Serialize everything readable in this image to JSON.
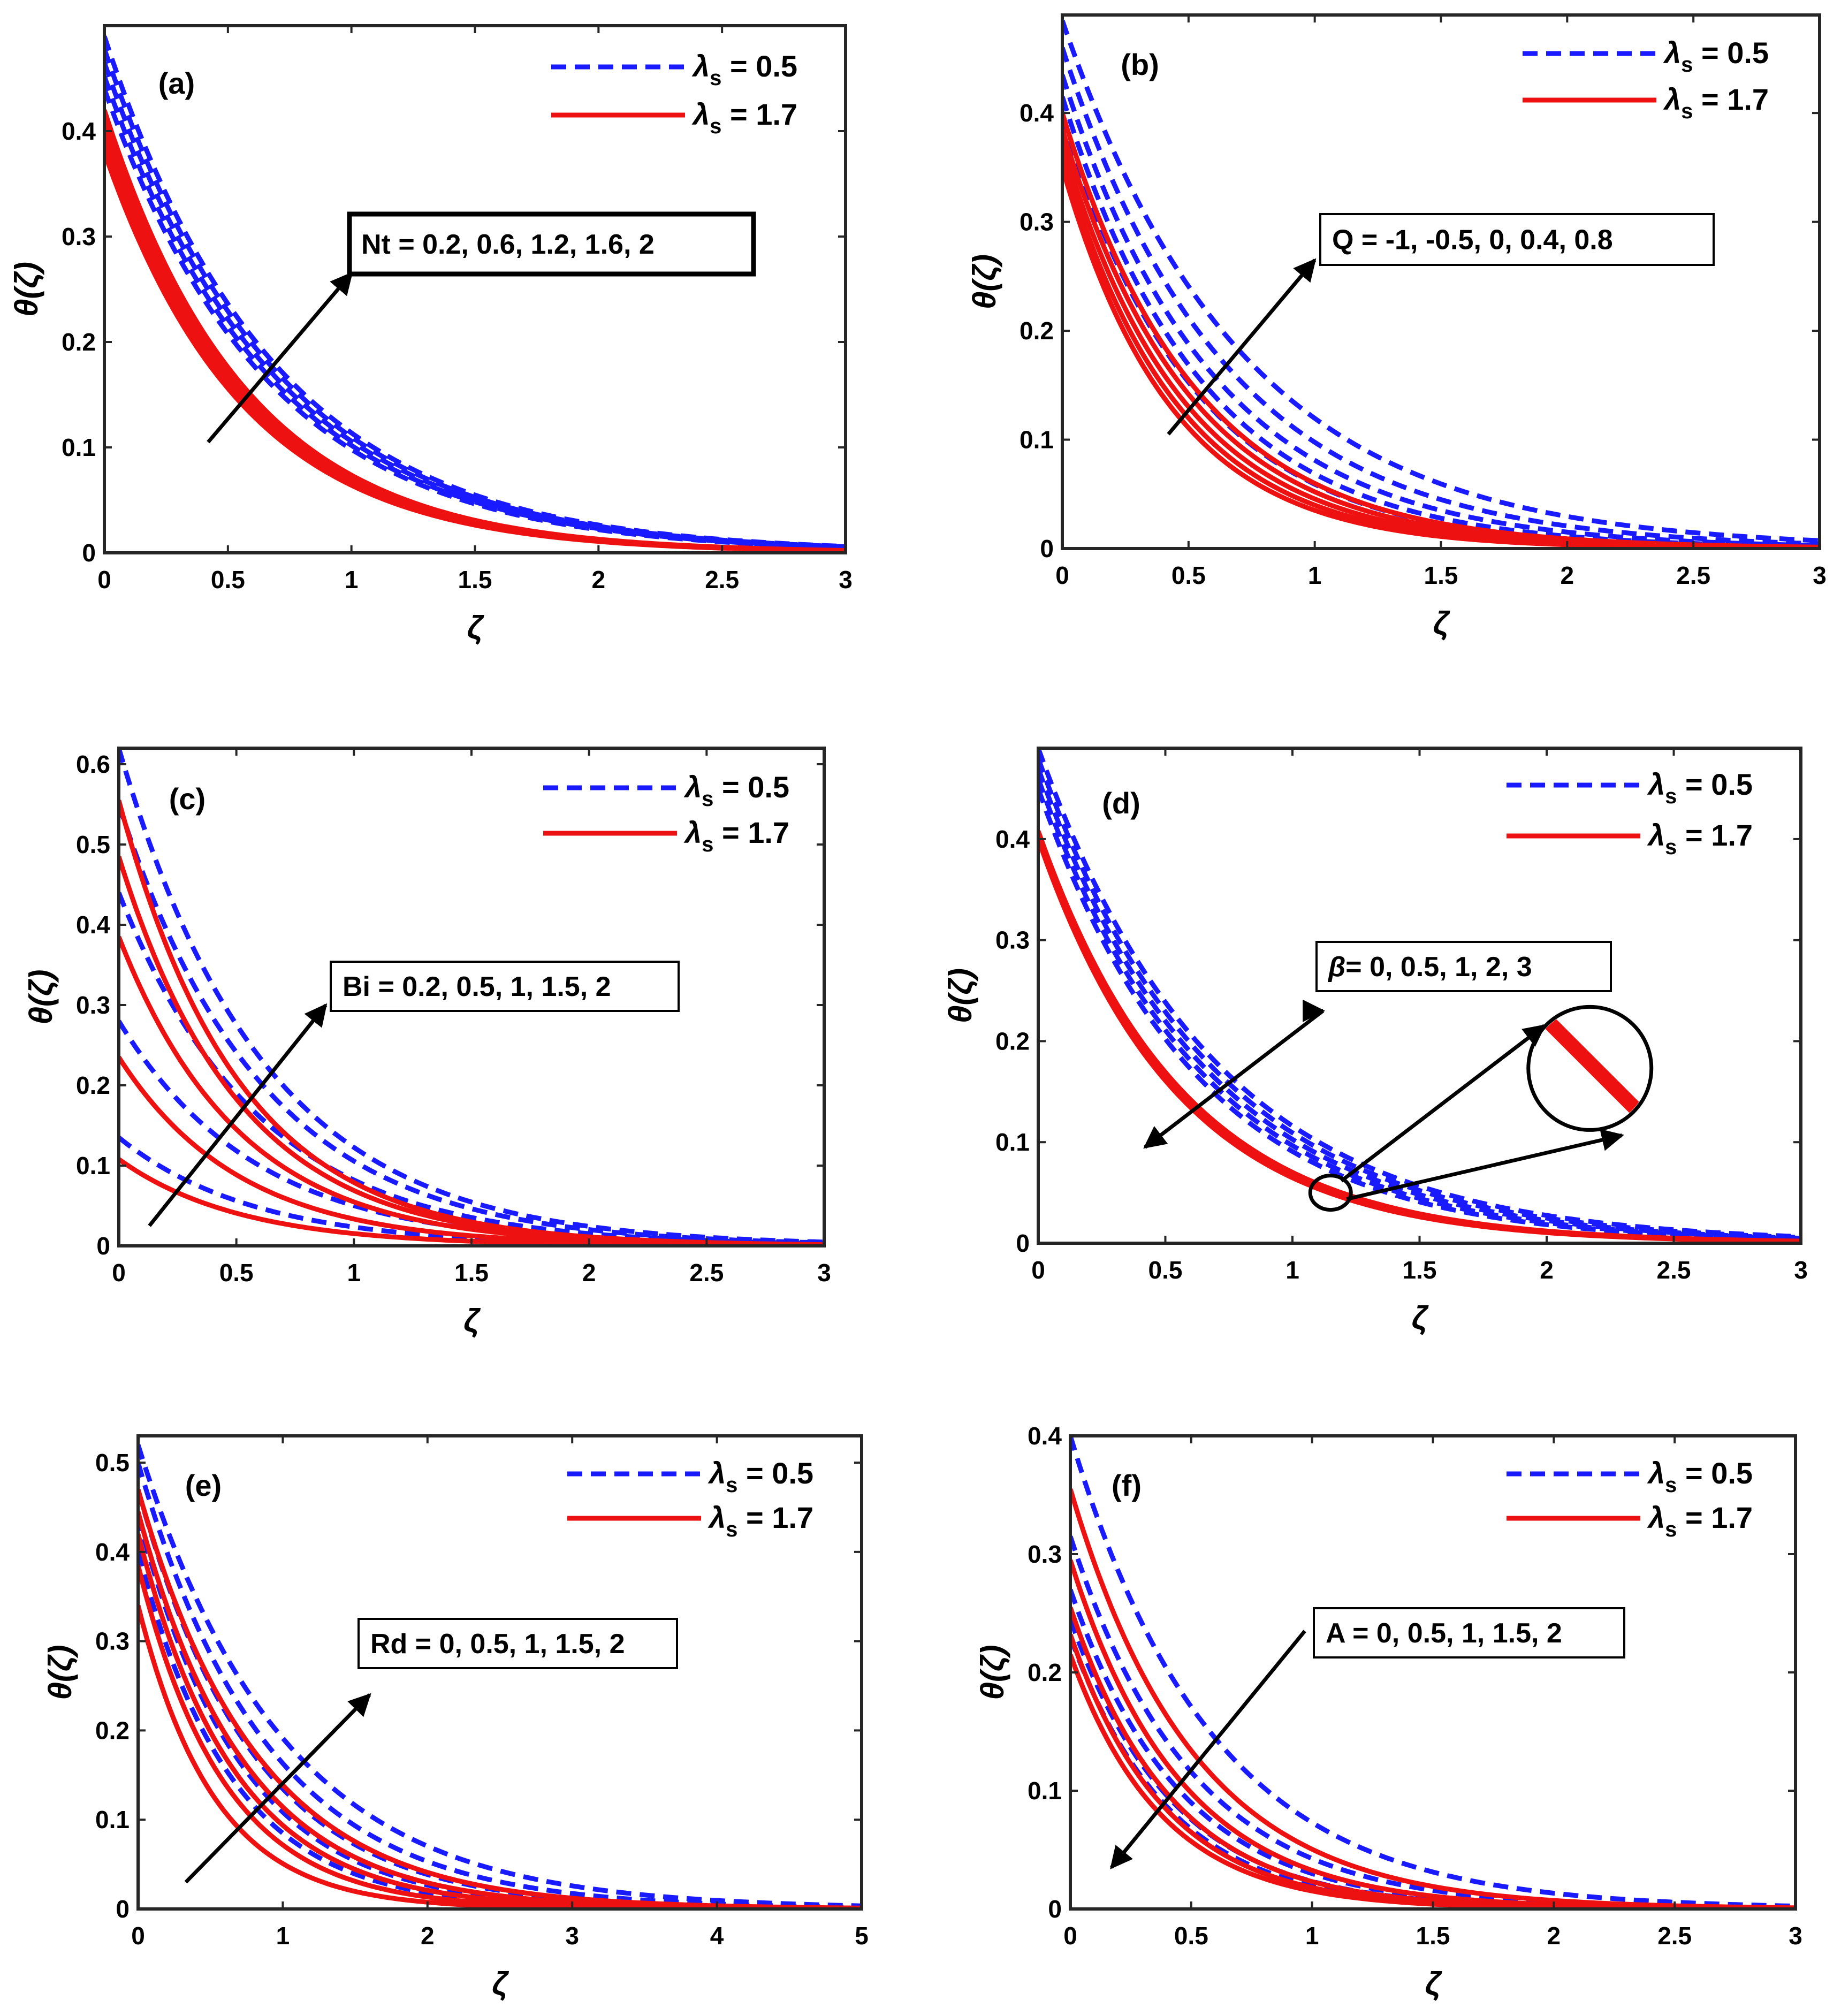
{
  "figure": {
    "curve_model": "theta(zeta) = theta0 * exp(-k * zeta)",
    "colors": {
      "blue": "#1a1aff",
      "red": "#ee1111",
      "black": "#000000"
    },
    "xlabel": "ζ",
    "ylabel": "θ(ζ)",
    "legend_symbol": "λ",
    "legend_subscript": "s",
    "legend_entries": [
      {
        "label": " = 0.5",
        "style": "dashed",
        "color": "blue"
      },
      {
        "label": " = 1.7",
        "style": "solid",
        "color": "red"
      }
    ]
  },
  "chart_data": [
    {
      "type": "line",
      "panel": "(a)",
      "xlim": [
        0,
        3
      ],
      "ylim": [
        0,
        0.5
      ],
      "xticks": [
        "0",
        "0.5",
        "1",
        "1.5",
        "2",
        "2.5",
        "3"
      ],
      "yticks": [
        "0",
        "0.1",
        "0.2",
        "0.3",
        "0.4"
      ],
      "annotation": "Nt = 0.2, 0.6, 1.2, 1.6, 2",
      "annotation_box": "bold",
      "arrow_data": [
        [
          0.42,
          0.105
        ],
        [
          1.0,
          0.265
        ]
      ],
      "series": [
        {
          "name": "λs = 0.5, Nt = 0.2",
          "color": "blue",
          "style": "dashed",
          "theta0": 0.44,
          "k": 1.5
        },
        {
          "name": "λs = 0.5, Nt = 0.6",
          "color": "blue",
          "style": "dashed",
          "theta0": 0.452,
          "k": 1.49
        },
        {
          "name": "λs = 0.5, Nt = 1.2",
          "color": "blue",
          "style": "dashed",
          "theta0": 0.465,
          "k": 1.48
        },
        {
          "name": "λs = 0.5, Nt = 1.6",
          "color": "blue",
          "style": "dashed",
          "theta0": 0.478,
          "k": 1.47
        },
        {
          "name": "λs = 0.5, Nt = 2",
          "color": "blue",
          "style": "dashed",
          "theta0": 0.49,
          "k": 1.46
        },
        {
          "name": "λs = 1.7, Nt = 0.2",
          "color": "red",
          "style": "solid",
          "theta0": 0.38,
          "k": 1.78
        },
        {
          "name": "λs = 1.7, Nt = 0.6",
          "color": "red",
          "style": "solid",
          "theta0": 0.39,
          "k": 1.77
        },
        {
          "name": "λs = 1.7, Nt = 1.2",
          "color": "red",
          "style": "solid",
          "theta0": 0.4,
          "k": 1.76
        },
        {
          "name": "λs = 1.7, Nt = 1.6",
          "color": "red",
          "style": "solid",
          "theta0": 0.41,
          "k": 1.75
        },
        {
          "name": "λs = 1.7, Nt = 2",
          "color": "red",
          "style": "solid",
          "theta0": 0.42,
          "k": 1.74
        }
      ]
    },
    {
      "type": "line",
      "panel": "(b)",
      "xlim": [
        0,
        3
      ],
      "ylim": [
        0,
        0.49
      ],
      "xticks": [
        "0",
        "0.5",
        "1",
        "1.5",
        "2",
        "2.5",
        "3"
      ],
      "yticks": [
        "0",
        "0.1",
        "0.2",
        "0.3",
        "0.4"
      ],
      "annotation": "Q = -1, -0.5, 0, 0.4, 0.8",
      "annotation_box": "thin",
      "arrow_data": [
        [
          0.42,
          0.105
        ],
        [
          1.0,
          0.265
        ]
      ],
      "series": [
        {
          "name": "λs = 0.5, Q = -1",
          "color": "blue",
          "style": "dashed",
          "theta0": 0.395,
          "k": 1.9
        },
        {
          "name": "λs = 0.5, Q = -0.5",
          "color": "blue",
          "style": "dashed",
          "theta0": 0.415,
          "k": 1.8
        },
        {
          "name": "λs = 0.5, Q = 0",
          "color": "blue",
          "style": "dashed",
          "theta0": 0.435,
          "k": 1.68
        },
        {
          "name": "λs = 0.5, Q = 0.4",
          "color": "blue",
          "style": "dashed",
          "theta0": 0.46,
          "k": 1.55
        },
        {
          "name": "λs = 0.5, Q = 0.8",
          "color": "blue",
          "style": "dashed",
          "theta0": 0.485,
          "k": 1.4
        },
        {
          "name": "λs = 1.7, Q = -1",
          "color": "red",
          "style": "solid",
          "theta0": 0.35,
          "k": 2.3
        },
        {
          "name": "λs = 1.7, Q = -0.5",
          "color": "red",
          "style": "solid",
          "theta0": 0.36,
          "k": 2.2
        },
        {
          "name": "λs = 1.7, Q = 0",
          "color": "red",
          "style": "solid",
          "theta0": 0.372,
          "k": 2.1
        },
        {
          "name": "λs = 1.7, Q = 0.4",
          "color": "red",
          "style": "solid",
          "theta0": 0.385,
          "k": 2.0
        },
        {
          "name": "λs = 1.7, Q = 0.8",
          "color": "red",
          "style": "solid",
          "theta0": 0.4,
          "k": 1.9
        }
      ]
    },
    {
      "type": "line",
      "panel": "(c)",
      "xlim": [
        0,
        3
      ],
      "ylim": [
        0,
        0.62
      ],
      "xticks": [
        "0",
        "0.5",
        "1",
        "1.5",
        "2",
        "2.5",
        "3"
      ],
      "yticks": [
        "0",
        "0.1",
        "0.2",
        "0.3",
        "0.4",
        "0.5",
        "0.6"
      ],
      "annotation": "Bi = 0.2, 0.5, 1, 1.5, 2",
      "annotation_box": "thin",
      "arrow_data": [
        [
          0.13,
          0.025
        ],
        [
          0.88,
          0.3
        ]
      ],
      "series": [
        {
          "name": "λs = 0.5, Bi = 0.2",
          "color": "blue",
          "style": "dashed",
          "theta0": 0.135,
          "k": 1.75
        },
        {
          "name": "λs = 0.5, Bi = 0.5",
          "color": "blue",
          "style": "dashed",
          "theta0": 0.28,
          "k": 1.72
        },
        {
          "name": "λs = 0.5, Bi = 1",
          "color": "blue",
          "style": "dashed",
          "theta0": 0.44,
          "k": 1.68
        },
        {
          "name": "λs = 0.5, Bi = 1.5",
          "color": "blue",
          "style": "dashed",
          "theta0": 0.55,
          "k": 1.65
        },
        {
          "name": "λs = 0.5, Bi = 2",
          "color": "blue",
          "style": "dashed",
          "theta0": 0.62,
          "k": 1.62
        },
        {
          "name": "λs = 1.7, Bi = 0.2",
          "color": "red",
          "style": "solid",
          "theta0": 0.108,
          "k": 1.95
        },
        {
          "name": "λs = 1.7, Bi = 0.5",
          "color": "red",
          "style": "solid",
          "theta0": 0.235,
          "k": 1.95
        },
        {
          "name": "λs = 1.7, Bi = 1",
          "color": "red",
          "style": "solid",
          "theta0": 0.385,
          "k": 1.95
        },
        {
          "name": "λs = 1.7, Bi = 1.5",
          "color": "red",
          "style": "solid",
          "theta0": 0.485,
          "k": 1.95
        },
        {
          "name": "λs = 1.7, Bi = 2",
          "color": "red",
          "style": "solid",
          "theta0": 0.555,
          "k": 1.95
        }
      ]
    },
    {
      "type": "line",
      "panel": "(d)",
      "xlim": [
        0,
        3
      ],
      "ylim": [
        0,
        0.49
      ],
      "xticks": [
        "0",
        "0.5",
        "1",
        "1.5",
        "2",
        "2.5",
        "3"
      ],
      "yticks": [
        "0",
        "0.1",
        "0.2",
        "0.3",
        "0.4"
      ],
      "annotation": "= 0, 0.5, 1, 2, 3",
      "annotation_symbol": "β",
      "annotation_box": "thin",
      "arrow_data": [
        [
          1.12,
          0.23
        ],
        [
          0.42,
          0.095
        ]
      ],
      "inset_note": "zoomed circle at ζ≈1.15, θ≈0.05",
      "series": [
        {
          "name": "λs = 0.5, β = 0",
          "color": "blue",
          "style": "dashed",
          "theta0": 0.45,
          "k": 1.6
        },
        {
          "name": "λs = 0.5, β = 0.5",
          "color": "blue",
          "style": "dashed",
          "theta0": 0.46,
          "k": 1.56
        },
        {
          "name": "λs = 0.5, β = 1",
          "color": "blue",
          "style": "dashed",
          "theta0": 0.47,
          "k": 1.52
        },
        {
          "name": "λs = 0.5, β = 2",
          "color": "blue",
          "style": "dashed",
          "theta0": 0.48,
          "k": 1.48
        },
        {
          "name": "λs = 0.5, β = 3",
          "color": "blue",
          "style": "dashed",
          "theta0": 0.49,
          "k": 1.44
        },
        {
          "name": "λs = 1.7, β = 0",
          "color": "red",
          "style": "solid",
          "theta0": 0.4,
          "k": 1.82
        },
        {
          "name": "λs = 1.7, β = 0.5",
          "color": "red",
          "style": "solid",
          "theta0": 0.402,
          "k": 1.805
        },
        {
          "name": "λs = 1.7, β = 1",
          "color": "red",
          "style": "solid",
          "theta0": 0.404,
          "k": 1.79
        },
        {
          "name": "λs = 1.7, β = 2",
          "color": "red",
          "style": "solid",
          "theta0": 0.406,
          "k": 1.775
        },
        {
          "name": "λs = 1.7, β = 3",
          "color": "red",
          "style": "solid",
          "theta0": 0.408,
          "k": 1.76
        }
      ]
    },
    {
      "type": "line",
      "panel": "(e)",
      "xlim": [
        0,
        5
      ],
      "ylim": [
        0,
        0.53
      ],
      "xticks": [
        "0",
        "1",
        "2",
        "3",
        "4",
        "5"
      ],
      "yticks": [
        "0",
        "0.1",
        "0.2",
        "0.3",
        "0.4",
        "0.5"
      ],
      "annotation": "Rd = 0, 0.5, 1, 1.5, 2",
      "annotation_box": "thin",
      "arrow_data": [
        [
          0.33,
          0.03
        ],
        [
          1.6,
          0.24
        ]
      ],
      "series": [
        {
          "name": "λs = 0.5, Rd = 0",
          "color": "blue",
          "style": "dashed",
          "theta0": 0.4,
          "k": 1.55
        },
        {
          "name": "λs = 0.5, Rd = 0.5",
          "color": "blue",
          "style": "dashed",
          "theta0": 0.44,
          "k": 1.4
        },
        {
          "name": "λs = 0.5, Rd = 1",
          "color": "blue",
          "style": "dashed",
          "theta0": 0.47,
          "k": 1.25
        },
        {
          "name": "λs = 0.5, Rd = 1.5",
          "color": "blue",
          "style": "dashed",
          "theta0": 0.5,
          "k": 1.12
        },
        {
          "name": "λs = 0.5, Rd = 2",
          "color": "blue",
          "style": "dashed",
          "theta0": 0.52,
          "k": 1.0
        },
        {
          "name": "λs = 1.7, Rd = 0",
          "color": "red",
          "style": "solid",
          "theta0": 0.34,
          "k": 1.9
        },
        {
          "name": "λs = 1.7, Rd = 0.5",
          "color": "red",
          "style": "solid",
          "theta0": 0.385,
          "k": 1.68
        },
        {
          "name": "λs = 1.7, Rd = 1",
          "color": "red",
          "style": "solid",
          "theta0": 0.42,
          "k": 1.5
        },
        {
          "name": "λs = 1.7, Rd = 1.5",
          "color": "red",
          "style": "solid",
          "theta0": 0.445,
          "k": 1.36
        },
        {
          "name": "λs = 1.7, Rd = 2",
          "color": "red",
          "style": "solid",
          "theta0": 0.47,
          "k": 1.22
        }
      ]
    },
    {
      "type": "line",
      "panel": "(f)",
      "xlim": [
        0,
        3
      ],
      "ylim": [
        0,
        0.4
      ],
      "xticks": [
        "0",
        "0.5",
        "1",
        "1.5",
        "2",
        "2.5",
        "3"
      ],
      "yticks": [
        "0",
        "0.1",
        "0.2",
        "0.3",
        "0.4"
      ],
      "annotation": "A = 0, 0.5, 1, 1.5, 2",
      "annotation_box": "thin",
      "arrow_data": [
        [
          0.97,
          0.235
        ],
        [
          0.17,
          0.035
        ]
      ],
      "series": [
        {
          "name": "λs = 0.5, A = 0",
          "color": "blue",
          "style": "dashed",
          "theta0": 0.4,
          "k": 1.7
        },
        {
          "name": "λs = 0.5, A = 0.5",
          "color": "blue",
          "style": "dashed",
          "theta0": 0.315,
          "k": 2.0
        },
        {
          "name": "λs = 0.5, A = 1",
          "color": "blue",
          "style": "dashed",
          "theta0": 0.27,
          "k": 2.2
        },
        {
          "name": "λs = 0.5, A = 1.5",
          "color": "blue",
          "style": "dashed",
          "theta0": 0.245,
          "k": 2.35
        },
        {
          "name": "λs = 0.5, A = 2",
          "color": "blue",
          "style": "dashed",
          "theta0": 0.23,
          "k": 2.45
        },
        {
          "name": "λs = 1.7, A = 0",
          "color": "red",
          "style": "solid",
          "theta0": 0.355,
          "k": 1.95
        },
        {
          "name": "λs = 1.7, A = 0.5",
          "color": "red",
          "style": "solid",
          "theta0": 0.295,
          "k": 2.2
        },
        {
          "name": "λs = 1.7, A = 1",
          "color": "red",
          "style": "solid",
          "theta0": 0.255,
          "k": 2.4
        },
        {
          "name": "λs = 1.7, A = 1.5",
          "color": "red",
          "style": "solid",
          "theta0": 0.232,
          "k": 2.55
        },
        {
          "name": "λs = 1.7, A = 2",
          "color": "red",
          "style": "solid",
          "theta0": 0.215,
          "k": 2.65
        }
      ]
    }
  ]
}
